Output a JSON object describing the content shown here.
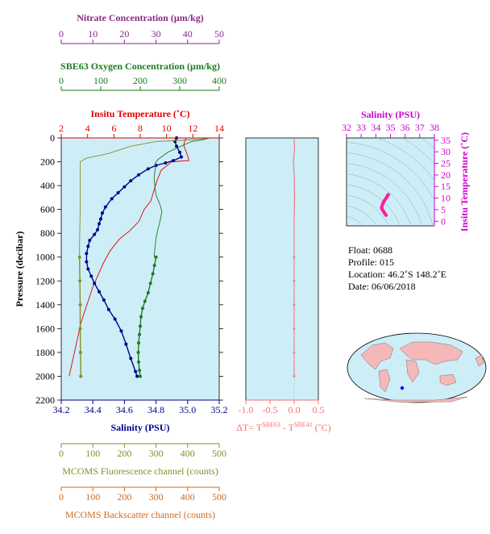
{
  "colors": {
    "nitrate": "#8a2a8a",
    "oxygen": "#1e7a1e",
    "temperature": "#e00000",
    "salinity": "#00008b",
    "fluorescence": "#8b8b2a",
    "backscatter": "#d2691e",
    "delta_t": "#f07070",
    "ts_axis": "#d000d0",
    "panel_bg": "#cdeef7"
  },
  "float_info": {
    "float": "Float:  0688",
    "profile": "Profile:  015",
    "location": "Location:  46.2˚S  148.2˚E",
    "date": "Date:  06/06/2018"
  },
  "chart_data": [
    {
      "type": "line",
      "panel": "main profile",
      "ylabel": "Pressure (decibar)",
      "y_ticks": [
        "0",
        "200",
        "400",
        "600",
        "800",
        "1000",
        "1200",
        "1400",
        "1600",
        "1800",
        "2000",
        "2200"
      ],
      "ylim": [
        0,
        2200
      ],
      "y_inverted": true,
      "axes": {
        "nitrate": {
          "label": "Nitrate Concentration (µm/kg)",
          "lim": [
            0,
            50
          ],
          "ticks": [
            "0",
            "10",
            "20",
            "30",
            "40",
            "50"
          ]
        },
        "oxygen": {
          "label": "SBE63 Oxygen Concentration (µm/kg)",
          "lim": [
            0,
            400
          ],
          "ticks": [
            "0",
            "100",
            "200",
            "300",
            "400"
          ]
        },
        "temperature": {
          "label": "Insitu Temperature (˚C)",
          "lim": [
            2,
            14
          ],
          "ticks": [
            "2",
            "4",
            "6",
            "8",
            "10",
            "12",
            "14"
          ]
        },
        "salinity": {
          "label": "Salinity (PSU)",
          "lim": [
            34.2,
            35.2
          ],
          "ticks": [
            "34.2",
            "34.4",
            "34.6",
            "34.8",
            "35.0",
            "35.2"
          ]
        },
        "fluorescence": {
          "label": "MCOMS Fluorescence channel (counts)",
          "lim": [
            0,
            500
          ],
          "ticks": [
            "0",
            "100",
            "200",
            "300",
            "400",
            "500"
          ]
        },
        "backscatter": {
          "label": "MCOMS Backscatter channel (counts)",
          "lim": [
            0,
            500
          ],
          "ticks": [
            "0",
            "100",
            "200",
            "300",
            "400",
            "500"
          ]
        }
      },
      "series": [
        {
          "axis": "temperature",
          "marker": "none",
          "points": [
            [
              11.5,
              0
            ],
            [
              11.4,
              20
            ],
            [
              11.3,
              60
            ],
            [
              11.6,
              150
            ],
            [
              11.7,
              190
            ],
            [
              10.4,
              200
            ],
            [
              9.6,
              270
            ],
            [
              9.3,
              350
            ],
            [
              9.1,
              420
            ],
            [
              8.8,
              530
            ],
            [
              8.3,
              600
            ],
            [
              7.9,
              700
            ],
            [
              7.2,
              780
            ],
            [
              6.4,
              850
            ],
            [
              5.7,
              950
            ],
            [
              5.2,
              1050
            ],
            [
              4.8,
              1150
            ],
            [
              4.4,
              1250
            ],
            [
              4.1,
              1350
            ],
            [
              3.8,
              1450
            ],
            [
              3.5,
              1550
            ],
            [
              3.3,
              1650
            ],
            [
              3.1,
              1750
            ],
            [
              2.9,
              1850
            ],
            [
              2.7,
              1950
            ],
            [
              2.6,
              2000
            ]
          ]
        },
        {
          "axis": "salinity",
          "marker": "dot",
          "points": [
            [
              34.93,
              0
            ],
            [
              34.92,
              30
            ],
            [
              34.93,
              70
            ],
            [
              34.95,
              120
            ],
            [
              34.96,
              160
            ],
            [
              34.91,
              190
            ],
            [
              34.86,
              210
            ],
            [
              34.8,
              230
            ],
            [
              34.75,
              260
            ],
            [
              34.69,
              310
            ],
            [
              34.64,
              360
            ],
            [
              34.6,
              410
            ],
            [
              34.56,
              460
            ],
            [
              34.52,
              510
            ],
            [
              34.48,
              580
            ],
            [
              34.46,
              630
            ],
            [
              34.45,
              680
            ],
            [
              34.44,
              720
            ],
            [
              34.43,
              770
            ],
            [
              34.41,
              810
            ],
            [
              34.38,
              860
            ],
            [
              34.37,
              910
            ],
            [
              34.36,
              970
            ],
            [
              34.36,
              1040
            ],
            [
              34.37,
              1100
            ],
            [
              34.39,
              1160
            ],
            [
              34.41,
              1220
            ],
            [
              34.44,
              1290
            ],
            [
              34.47,
              1360
            ],
            [
              34.5,
              1440
            ],
            [
              34.54,
              1520
            ],
            [
              34.58,
              1620
            ],
            [
              34.61,
              1730
            ],
            [
              34.64,
              1850
            ],
            [
              34.67,
              1960
            ],
            [
              34.68,
              2000
            ]
          ]
        },
        {
          "axis": "oxygen",
          "marker": "none",
          "points": [
            [
              375,
              0
            ],
            [
              360,
              15
            ],
            [
              330,
              30
            ],
            [
              270,
              120
            ],
            [
              245,
              180
            ],
            [
              238,
              210
            ],
            [
              238,
              260
            ],
            [
              235,
              330
            ],
            [
              237,
              400
            ],
            [
              240,
              480
            ],
            [
              250,
              560
            ],
            [
              255,
              620
            ],
            [
              250,
              700
            ],
            [
              245,
              760
            ],
            [
              240,
              840
            ],
            [
              238,
              900
            ],
            [
              235,
              1000
            ]
          ]
        },
        {
          "axis": "oxygen",
          "marker": "dot",
          "points": [
            [
              240,
              1000
            ],
            [
              236,
              1070
            ],
            [
              232,
              1140
            ],
            [
              226,
              1220
            ],
            [
              220,
              1300
            ],
            [
              212,
              1370
            ],
            [
              206,
              1430
            ],
            [
              202,
              1500
            ],
            [
              200,
              1580
            ],
            [
              198,
              1650
            ],
            [
              196,
              1720
            ],
            [
              195,
              1800
            ],
            [
              196,
              1880
            ],
            [
              198,
              1950
            ],
            [
              200,
              2000
            ]
          ]
        },
        {
          "axis": "fluorescence",
          "marker": "none",
          "points": [
            [
              470,
              0
            ],
            [
              440,
              10
            ],
            [
              380,
              20
            ],
            [
              300,
              30
            ],
            [
              220,
              70
            ],
            [
              150,
              130
            ],
            [
              80,
              170
            ],
            [
              60,
              200
            ],
            [
              60,
              600
            ],
            [
              58,
              900
            ],
            [
              58,
              1000
            ]
          ]
        },
        {
          "axis": "fluorescence",
          "marker": "dot",
          "points": [
            [
              58,
              1000
            ],
            [
              59,
              1200
            ],
            [
              60,
              1400
            ],
            [
              60,
              1600
            ],
            [
              61,
              1800
            ],
            [
              62,
              2000
            ]
          ]
        }
      ]
    },
    {
      "type": "line",
      "panel": "delta temperature",
      "xlabel": "ΔT= T^SBE63 - T^SBE41 (˚C)",
      "xlim": [
        -1.0,
        0.5
      ],
      "x_ticks": [
        "-1.0",
        "-0.5",
        "0.0",
        "0.5"
      ],
      "ylim": [
        0,
        2200
      ],
      "y_inverted": true,
      "series": [
        {
          "name": "",
          "points": [
            [
              0.0,
              0
            ],
            [
              0.01,
              100
            ],
            [
              -0.02,
              200
            ],
            [
              0.0,
              300
            ],
            [
              0.01,
              500
            ],
            [
              0.0,
              700
            ],
            [
              0.0,
              900
            ],
            [
              0.0,
              1000
            ],
            [
              0.0,
              1200
            ],
            [
              0.0,
              1400
            ],
            [
              0.0,
              1600
            ],
            [
              0.0,
              1800
            ],
            [
              0.0,
              2000
            ]
          ]
        }
      ]
    },
    {
      "type": "scatter",
      "panel": "theta-salinity",
      "xlabel": "Salinity (PSU)",
      "ylabel": "Insitu Temperature (˚C)",
      "xlim": [
        32,
        38
      ],
      "x_ticks": [
        "32",
        "33",
        "34",
        "35",
        "36",
        "37",
        "38"
      ],
      "ylim": [
        -2,
        36
      ],
      "y_ticks": [
        "0",
        "5",
        "10",
        "15",
        "20",
        "25",
        "30",
        "35"
      ],
      "series": [
        {
          "name": "",
          "points": [
            [
              34.7,
              2.6
            ],
            [
              34.65,
              3.0
            ],
            [
              34.6,
              3.5
            ],
            [
              34.55,
              4.0
            ],
            [
              34.5,
              4.5
            ],
            [
              34.45,
              5.0
            ],
            [
              34.4,
              5.5
            ],
            [
              34.4,
              6.0
            ],
            [
              34.45,
              7.0
            ],
            [
              34.5,
              8.0
            ],
            [
              34.6,
              9.0
            ],
            [
              34.7,
              10.0
            ],
            [
              34.8,
              11.0
            ],
            [
              34.85,
              11.5
            ]
          ]
        }
      ]
    }
  ]
}
